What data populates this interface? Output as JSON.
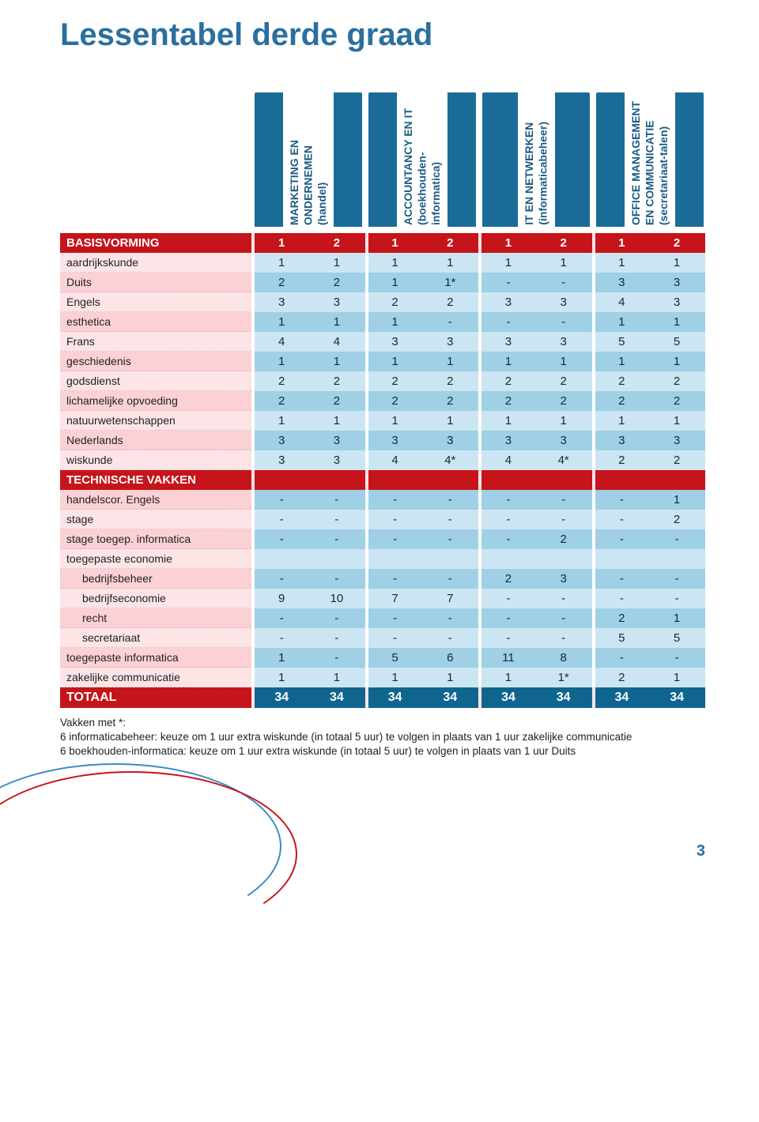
{
  "title": "Lessentabel derde graad",
  "page_number": "3",
  "colors": {
    "title": "#2a6fa0",
    "header_bar": "#1b6b99",
    "header_text": "#1f5c84",
    "section_bg": "#c5151a",
    "section_sep": "#fde4e6",
    "total_cell_bg": "#10658f",
    "row_even_label": "#fde4e6",
    "row_odd_label": "#fbd1d5",
    "row_even_cell": "#cbe6f2",
    "row_odd_cell": "#9fd0e5"
  },
  "programs": [
    {
      "name": "MARKETING EN\nONDERNEMEN\n(handel)"
    },
    {
      "name": "ACCOUNTANCY EN IT\n(boekhouden-\ninformatica)"
    },
    {
      "name": "IT EN NETWERKEN\n(informaticabeheer)"
    },
    {
      "name": "OFFICE MANAGEMENT\nEN COMMUNICATIE\n(secretariaat-talen)"
    }
  ],
  "sections": [
    {
      "label": "BASISVORMING",
      "header_values": [
        "1",
        "2",
        "1",
        "2",
        "1",
        "2",
        "1",
        "2"
      ],
      "rows": [
        {
          "label": "aardrijkskunde",
          "values": [
            "1",
            "1",
            "1",
            "1",
            "1",
            "1",
            "1",
            "1"
          ]
        },
        {
          "label": "Duits",
          "values": [
            "2",
            "2",
            "1",
            "1*",
            "-",
            "-",
            "3",
            "3"
          ]
        },
        {
          "label": "Engels",
          "values": [
            "3",
            "3",
            "2",
            "2",
            "3",
            "3",
            "4",
            "3"
          ]
        },
        {
          "label": "esthetica",
          "values": [
            "1",
            "1",
            "1",
            "-",
            "-",
            "-",
            "1",
            "1"
          ]
        },
        {
          "label": "Frans",
          "values": [
            "4",
            "4",
            "3",
            "3",
            "3",
            "3",
            "5",
            "5"
          ]
        },
        {
          "label": "geschiedenis",
          "values": [
            "1",
            "1",
            "1",
            "1",
            "1",
            "1",
            "1",
            "1"
          ]
        },
        {
          "label": "godsdienst",
          "values": [
            "2",
            "2",
            "2",
            "2",
            "2",
            "2",
            "2",
            "2"
          ]
        },
        {
          "label": "lichamelijke opvoeding",
          "values": [
            "2",
            "2",
            "2",
            "2",
            "2",
            "2",
            "2",
            "2"
          ]
        },
        {
          "label": "natuurwetenschappen",
          "values": [
            "1",
            "1",
            "1",
            "1",
            "1",
            "1",
            "1",
            "1"
          ]
        },
        {
          "label": "Nederlands",
          "values": [
            "3",
            "3",
            "3",
            "3",
            "3",
            "3",
            "3",
            "3"
          ]
        },
        {
          "label": "wiskunde",
          "values": [
            "3",
            "3",
            "4",
            "4*",
            "4",
            "4*",
            "2",
            "2"
          ]
        }
      ]
    },
    {
      "label": "TECHNISCHE VAKKEN",
      "header_values": [
        "",
        "",
        "",
        "",
        "",
        "",
        "",
        ""
      ],
      "rows": [
        {
          "label": "handelscor. Engels",
          "values": [
            "-",
            "-",
            "-",
            "-",
            "-",
            "-",
            "-",
            "1"
          ]
        },
        {
          "label": "stage",
          "values": [
            "-",
            "-",
            "-",
            "-",
            "-",
            "-",
            "-",
            "2"
          ]
        },
        {
          "label": "stage toegep. informatica",
          "values": [
            "-",
            "-",
            "-",
            "-",
            "-",
            "2",
            "-",
            "-"
          ]
        },
        {
          "label": "toegepaste economie",
          "values": [
            "",
            "",
            "",
            "",
            "",
            "",
            "",
            ""
          ]
        },
        {
          "label": "bedrijfsbeheer",
          "indent": true,
          "values": [
            "-",
            "-",
            "-",
            "-",
            "2",
            "3",
            "-",
            "-"
          ]
        },
        {
          "label": "bedrijfseconomie",
          "indent": true,
          "values": [
            "9",
            "10",
            "7",
            "7",
            "-",
            "-",
            "-",
            "-"
          ]
        },
        {
          "label": "recht",
          "indent": true,
          "values": [
            "-",
            "-",
            "-",
            "-",
            "-",
            "-",
            "2",
            "1"
          ]
        },
        {
          "label": "secretariaat",
          "indent": true,
          "values": [
            "-",
            "-",
            "-",
            "-",
            "-",
            "-",
            "5",
            "5"
          ]
        },
        {
          "label": "toegepaste informatica",
          "values": [
            "1",
            "-",
            "5",
            "6",
            "11",
            "8",
            "-",
            "-"
          ]
        },
        {
          "label": "zakelijke communicatie",
          "values": [
            "1",
            "1",
            "1",
            "1",
            "1",
            "1*",
            "2",
            "1"
          ]
        }
      ]
    }
  ],
  "total": {
    "label": "TOTAAL",
    "values": [
      "34",
      "34",
      "34",
      "34",
      "34",
      "34",
      "34",
      "34"
    ]
  },
  "footnote": {
    "lead": "Vakken met *:",
    "line1": "6 informaticabeheer: keuze om 1 uur extra wiskunde (in totaal 5 uur) te volgen in plaats van 1 uur zakelijke communicatie",
    "line2": "6 boekhouden-informatica: keuze om 1 uur extra wiskunde (in totaal 5 uur) te volgen in plaats van 1 uur Duits"
  }
}
